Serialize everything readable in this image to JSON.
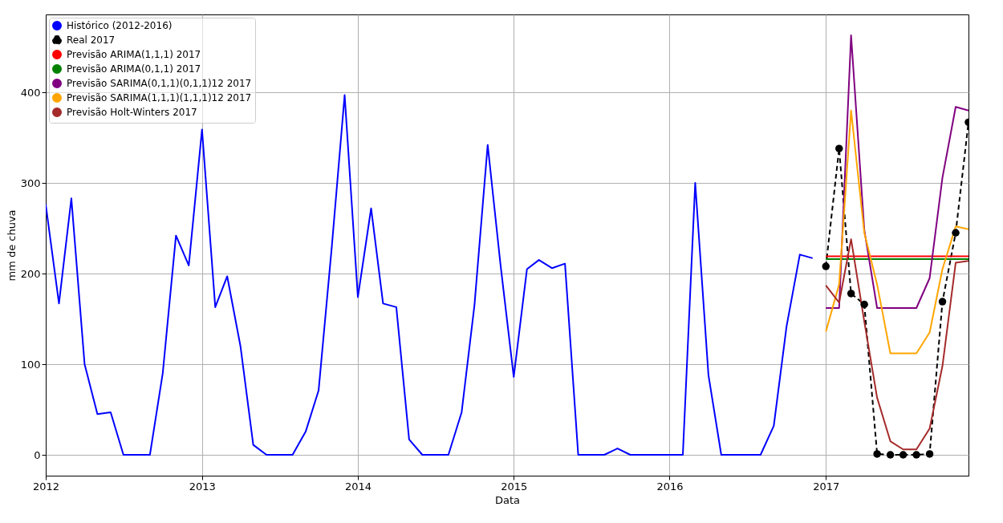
{
  "chart_data": {
    "type": "line",
    "xlabel": "Data",
    "ylabel": "mm de chuva",
    "xlim": [
      "2012-01",
      "2017-12"
    ],
    "xticks": [
      "2012",
      "2013",
      "2014",
      "2015",
      "2016",
      "2017"
    ],
    "ylim": [
      -23,
      486
    ],
    "yticks": [
      0,
      100,
      200,
      300,
      400
    ],
    "grid": true,
    "legend": "top left",
    "series": [
      {
        "name": "Histórico (2012-2016)",
        "color": "#0000ff",
        "marker": "none",
        "line_style": "solid",
        "x": [
          "2012-01",
          "2012-02",
          "2012-03",
          "2012-04",
          "2012-05",
          "2012-06",
          "2012-07",
          "2012-08",
          "2012-09",
          "2012-10",
          "2012-11",
          "2012-12",
          "2013-01",
          "2013-02",
          "2013-03",
          "2013-04",
          "2013-05",
          "2013-06",
          "2013-07",
          "2013-08",
          "2013-09",
          "2013-10",
          "2013-11",
          "2013-12",
          "2014-01",
          "2014-02",
          "2014-03",
          "2014-04",
          "2014-05",
          "2014-06",
          "2014-07",
          "2014-08",
          "2014-09",
          "2014-10",
          "2014-11",
          "2014-12",
          "2015-01",
          "2015-02",
          "2015-03",
          "2015-04",
          "2015-05",
          "2015-06",
          "2015-07",
          "2015-08",
          "2015-09",
          "2015-10",
          "2015-11",
          "2015-12",
          "2016-01",
          "2016-02",
          "2016-03",
          "2016-04",
          "2016-05",
          "2016-06",
          "2016-07",
          "2016-08",
          "2016-09",
          "2016-10",
          "2016-11",
          "2016-12"
        ],
        "values": [
          276,
          167,
          283,
          100,
          45,
          47,
          0,
          0,
          0,
          90,
          242,
          209,
          359,
          163,
          197,
          120,
          11,
          0,
          0,
          0,
          26,
          71,
          230,
          397,
          174,
          272,
          167,
          163,
          17,
          0,
          0,
          0,
          47,
          165,
          342,
          210,
          86,
          205,
          215,
          206,
          211,
          0,
          0,
          0,
          7,
          0,
          0,
          0,
          0,
          0,
          300,
          88,
          0,
          0,
          0,
          0,
          32,
          142,
          221,
          217
        ]
      },
      {
        "name": "Real 2017",
        "color": "#000000",
        "marker": "circle",
        "line_style": "dashed",
        "x": [
          "2017-01",
          "2017-02",
          "2017-03",
          "2017-04",
          "2017-05",
          "2017-06",
          "2017-07",
          "2017-08",
          "2017-09",
          "2017-10",
          "2017-11",
          "2017-12"
        ],
        "values": [
          208,
          338,
          178,
          166,
          1,
          0,
          0,
          0,
          1,
          169,
          245,
          367
        ]
      },
      {
        "name": "Previsão ARIMA(1,1,1) 2017",
        "color": "#ff0000",
        "marker": "none",
        "line_style": "solid",
        "x": [
          "2017-01",
          "2017-02",
          "2017-03",
          "2017-04",
          "2017-05",
          "2017-06",
          "2017-07",
          "2017-08",
          "2017-09",
          "2017-10",
          "2017-11",
          "2017-12"
        ],
        "values": [
          219,
          219,
          219,
          219,
          219,
          219,
          219,
          219,
          219,
          219,
          219,
          219
        ]
      },
      {
        "name": "Previsão ARIMA(0,1,1) 2017",
        "color": "#008000",
        "marker": "none",
        "line_style": "solid",
        "x": [
          "2017-01",
          "2017-02",
          "2017-03",
          "2017-04",
          "2017-05",
          "2017-06",
          "2017-07",
          "2017-08",
          "2017-09",
          "2017-10",
          "2017-11",
          "2017-12"
        ],
        "values": [
          216,
          216,
          216,
          216,
          216,
          216,
          216,
          216,
          216,
          216,
          216,
          216
        ]
      },
      {
        "name": "Previsão SARIMA(0,1,1)(0,1,1)12 2017",
        "color": "#800080",
        "marker": "none",
        "line_style": "solid",
        "x": [
          "2017-01",
          "2017-02",
          "2017-03",
          "2017-04",
          "2017-05",
          "2017-06",
          "2017-07",
          "2017-08",
          "2017-09",
          "2017-10",
          "2017-11",
          "2017-12"
        ],
        "values": [
          162,
          162,
          463,
          248,
          162,
          162,
          162,
          162,
          195,
          306,
          384,
          380
        ]
      },
      {
        "name": "Previsão SARIMA(1,1,1)(1,1,1)12 2017",
        "color": "#ffa500",
        "marker": "none",
        "line_style": "solid",
        "x": [
          "2017-01",
          "2017-02",
          "2017-03",
          "2017-04",
          "2017-05",
          "2017-06",
          "2017-07",
          "2017-08",
          "2017-09",
          "2017-10",
          "2017-11",
          "2017-12"
        ],
        "values": [
          136,
          188,
          380,
          245,
          188,
          112,
          112,
          112,
          135,
          205,
          252,
          249
        ]
      },
      {
        "name": "Previsão Holt-Winters 2017",
        "color": "#a52a2a",
        "marker": "none",
        "line_style": "solid",
        "x": [
          "2017-01",
          "2017-02",
          "2017-03",
          "2017-04",
          "2017-05",
          "2017-06",
          "2017-07",
          "2017-08",
          "2017-09",
          "2017-10",
          "2017-11",
          "2017-12"
        ],
        "values": [
          187,
          168,
          238,
          147,
          63,
          15,
          6,
          6,
          29,
          98,
          212,
          214
        ]
      }
    ]
  }
}
